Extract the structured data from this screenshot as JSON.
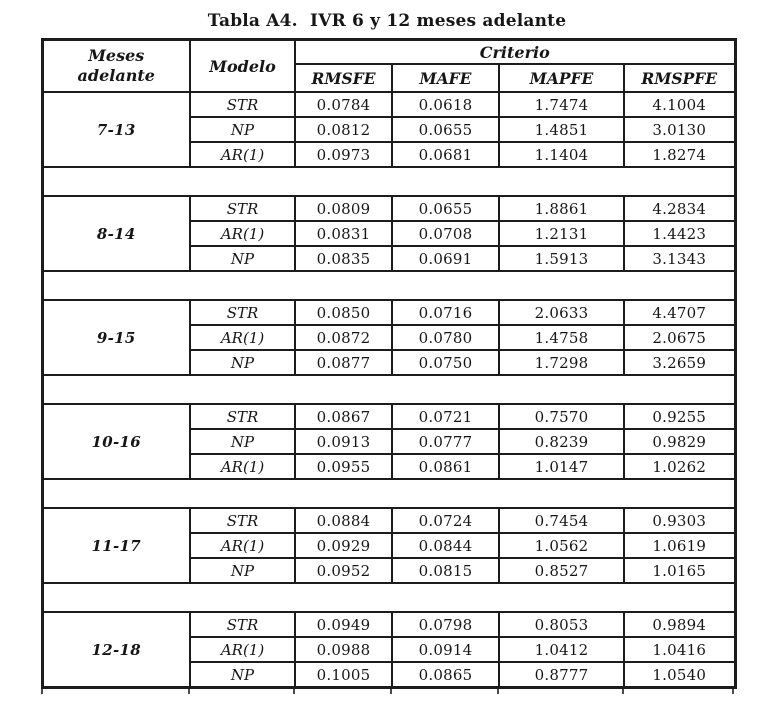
{
  "page": {
    "title": "Tabla A4.  IVR 6 y 12 meses adelante"
  },
  "table": {
    "header": {
      "meses_line1": "Meses",
      "meses_line2": "adelante",
      "modelo": "Modelo",
      "criterio": "Criterio",
      "criteria": [
        "RMSFE",
        "MAFE",
        "MAPFE",
        "RMSPFE"
      ]
    },
    "groups": [
      {
        "label": "7-13",
        "rows": [
          {
            "model": "STR",
            "values": [
              "0.0784",
              "0.0618",
              "1.7474",
              "4.1004"
            ]
          },
          {
            "model": "NP",
            "values": [
              "0.0812",
              "0.0655",
              "1.4851",
              "3.0130"
            ]
          },
          {
            "model": "AR(1)",
            "values": [
              "0.0973",
              "0.0681",
              "1.1404",
              "1.8274"
            ]
          }
        ]
      },
      {
        "label": "8-14",
        "rows": [
          {
            "model": "STR",
            "values": [
              "0.0809",
              "0.0655",
              "1.8861",
              "4.2834"
            ]
          },
          {
            "model": "AR(1)",
            "values": [
              "0.0831",
              "0.0708",
              "1.2131",
              "1.4423"
            ]
          },
          {
            "model": "NP",
            "values": [
              "0.0835",
              "0.0691",
              "1.5913",
              "3.1343"
            ]
          }
        ]
      },
      {
        "label": "9-15",
        "rows": [
          {
            "model": "STR",
            "values": [
              "0.0850",
              "0.0716",
              "2.0633",
              "4.4707"
            ]
          },
          {
            "model": "AR(1)",
            "values": [
              "0.0872",
              "0.0780",
              "1.4758",
              "2.0675"
            ]
          },
          {
            "model": "NP",
            "values": [
              "0.0877",
              "0.0750",
              "1.7298",
              "3.2659"
            ]
          }
        ]
      },
      {
        "label": "10-16",
        "rows": [
          {
            "model": "STR",
            "values": [
              "0.0867",
              "0.0721",
              "0.7570",
              "0.9255"
            ]
          },
          {
            "model": "NP",
            "values": [
              "0.0913",
              "0.0777",
              "0.8239",
              "0.9829"
            ]
          },
          {
            "model": "AR(1)",
            "values": [
              "0.0955",
              "0.0861",
              "1.0147",
              "1.0262"
            ]
          }
        ]
      },
      {
        "label": "11-17",
        "rows": [
          {
            "model": "STR",
            "values": [
              "0.0884",
              "0.0724",
              "0.7454",
              "0.9303"
            ]
          },
          {
            "model": "AR(1)",
            "values": [
              "0.0929",
              "0.0844",
              "1.0562",
              "1.0619"
            ]
          },
          {
            "model": "NP",
            "values": [
              "0.0952",
              "0.0815",
              "0.8527",
              "1.0165"
            ]
          }
        ]
      },
      {
        "label": "12-18",
        "rows": [
          {
            "model": "STR",
            "values": [
              "0.0949",
              "0.0798",
              "0.8053",
              "0.9894"
            ]
          },
          {
            "model": "AR(1)",
            "values": [
              "0.0988",
              "0.0914",
              "1.0412",
              "1.0416"
            ]
          },
          {
            "model": "NP",
            "values": [
              "0.1005",
              "0.0865",
              "0.8777",
              "1.0540"
            ]
          }
        ]
      }
    ]
  }
}
